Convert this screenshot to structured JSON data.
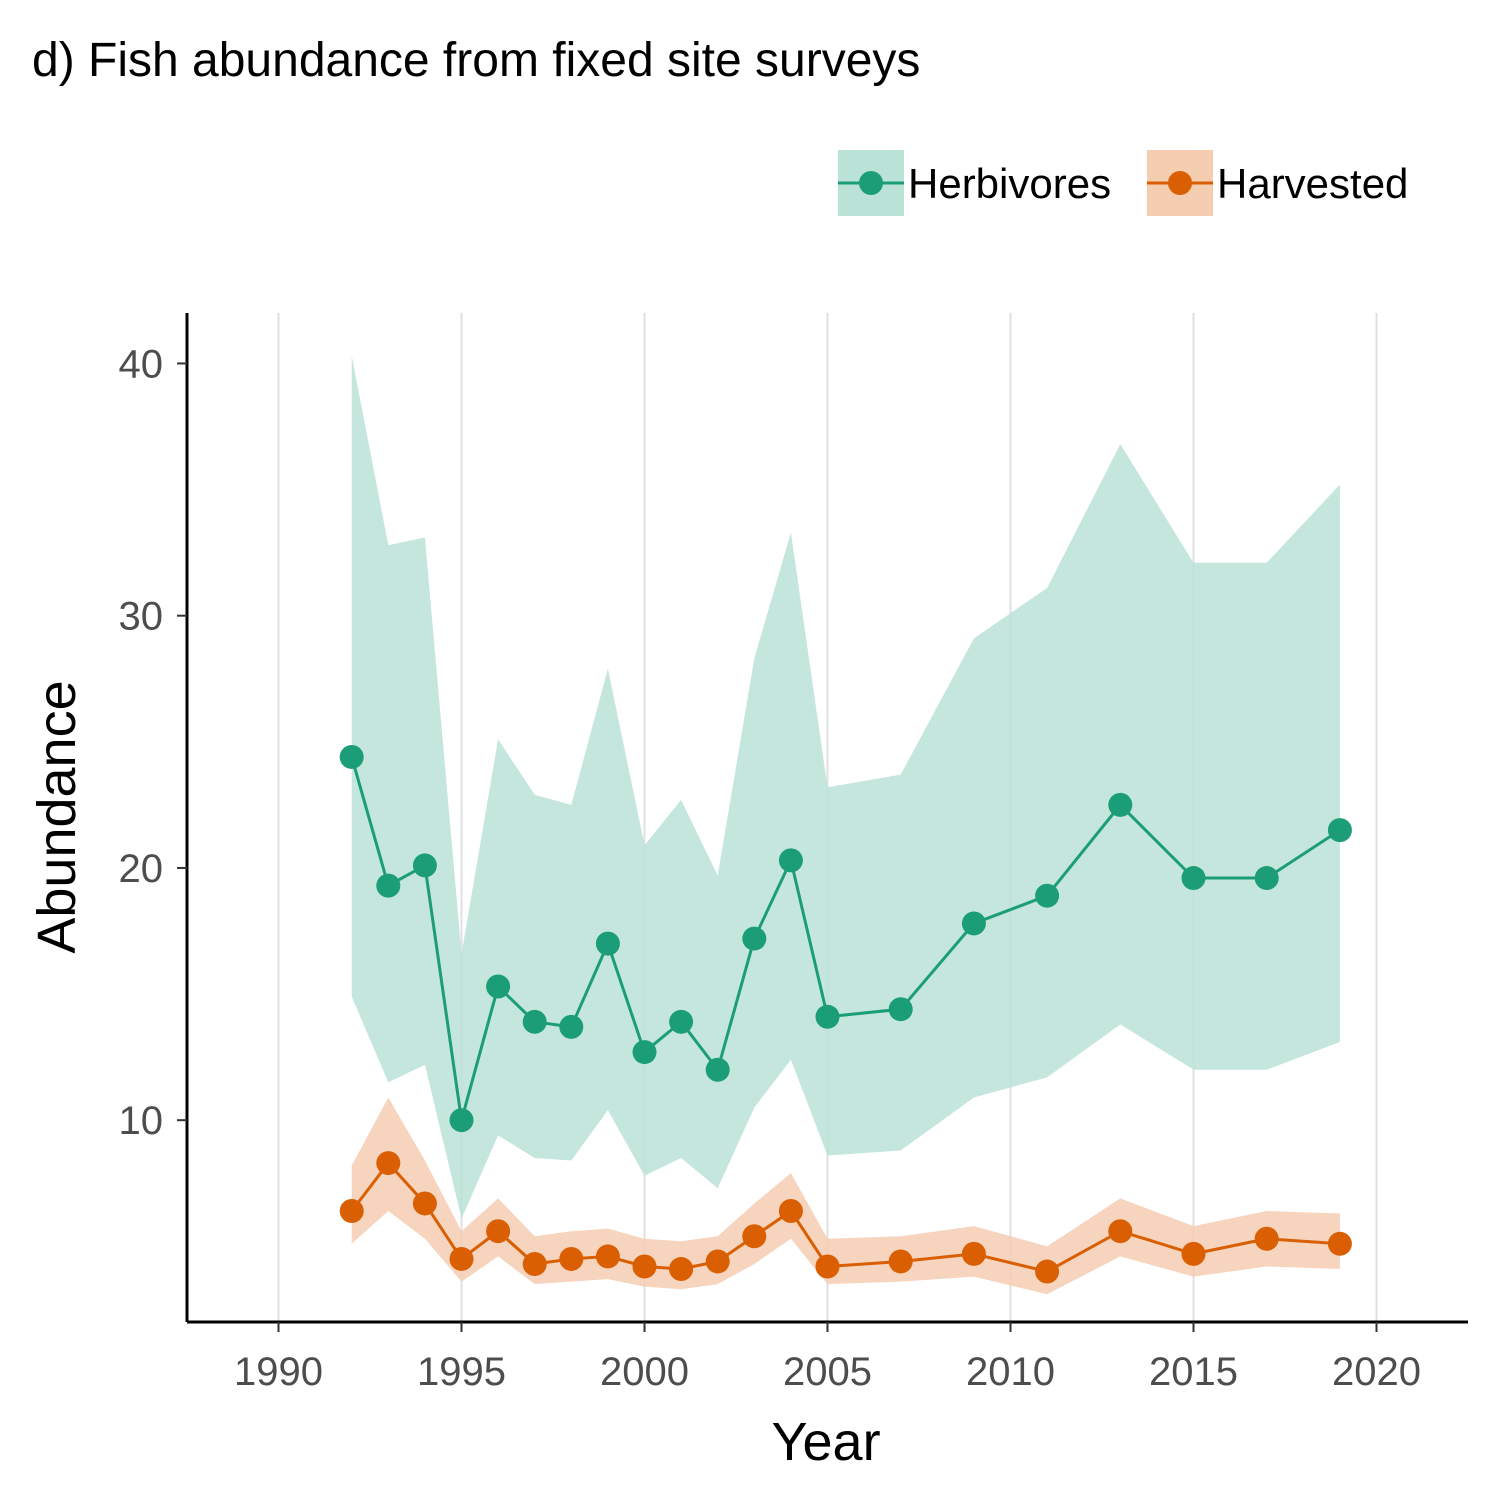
{
  "chart_data": {
    "type": "line",
    "title": "d) Fish abundance from fixed site surveys",
    "xlabel": "Year",
    "ylabel": "Abundance",
    "xlim": [
      1987.5,
      2022.5
    ],
    "ylim": [
      2,
      42
    ],
    "x_ticks": [
      1990,
      1995,
      2000,
      2005,
      2010,
      2015,
      2020
    ],
    "y_ticks": [
      10,
      20,
      30,
      40
    ],
    "grid": "vertical major lines only",
    "legend_position": "top-right",
    "series": [
      {
        "name": "Herbivores",
        "color": "#1b9e77",
        "ribbon_color": "#bbe2d7",
        "x": [
          1992,
          1993,
          1994,
          1995,
          1996,
          1997,
          1998,
          1999,
          2000,
          2001,
          2002,
          2003,
          2004,
          2005,
          2007,
          2009,
          2011,
          2013,
          2015,
          2017,
          2019
        ],
        "y": [
          24.4,
          19.3,
          20.1,
          10.0,
          15.3,
          13.9,
          13.7,
          17.0,
          12.7,
          13.9,
          12.0,
          17.2,
          20.3,
          14.1,
          14.4,
          17.8,
          18.9,
          22.5,
          19.6,
          19.6,
          21.5
        ],
        "lower": [
          14.9,
          11.5,
          12.2,
          6.1,
          9.4,
          8.5,
          8.4,
          10.4,
          7.8,
          8.5,
          7.3,
          10.5,
          12.4,
          8.6,
          8.8,
          10.9,
          11.7,
          13.8,
          12.0,
          12.0,
          13.1
        ],
        "upper": [
          40.3,
          32.8,
          33.1,
          16.6,
          25.1,
          22.9,
          22.5,
          27.9,
          20.9,
          22.7,
          19.7,
          28.3,
          33.3,
          23.2,
          23.7,
          29.1,
          31.1,
          36.8,
          32.1,
          32.1,
          35.2
        ]
      },
      {
        "name": "Harvested",
        "color": "#d95f02",
        "ribbon_color": "#f5cdb1",
        "x": [
          1992,
          1993,
          1994,
          1995,
          1996,
          1997,
          1998,
          1999,
          2000,
          2001,
          2002,
          2003,
          2004,
          2005,
          2007,
          2009,
          2011,
          2013,
          2015,
          2017,
          2019
        ],
        "y": [
          6.4,
          8.3,
          6.7,
          4.5,
          5.6,
          4.3,
          4.5,
          4.6,
          4.2,
          4.1,
          4.4,
          5.4,
          6.4,
          4.2,
          4.4,
          4.7,
          4.0,
          5.6,
          4.7,
          5.3,
          5.1
        ],
        "lower": [
          5.1,
          6.4,
          5.3,
          3.6,
          4.6,
          3.5,
          3.6,
          3.7,
          3.4,
          3.3,
          3.5,
          4.3,
          5.3,
          3.5,
          3.6,
          3.8,
          3.1,
          4.6,
          3.8,
          4.2,
          4.1
        ],
        "upper": [
          8.2,
          10.9,
          8.4,
          5.6,
          6.9,
          5.4,
          5.6,
          5.7,
          5.3,
          5.2,
          5.4,
          6.7,
          7.9,
          5.3,
          5.4,
          5.8,
          5.0,
          6.9,
          5.8,
          6.4,
          6.3
        ]
      }
    ]
  }
}
